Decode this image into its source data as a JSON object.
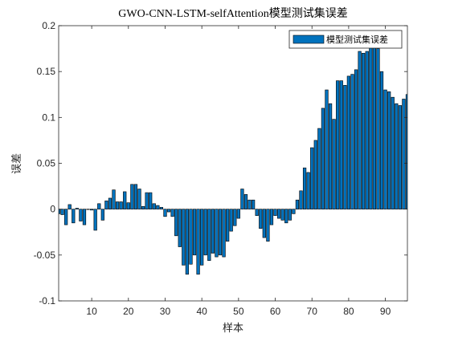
{
  "chart_data": {
    "type": "bar",
    "title": "GWO-CNN-LSTM-selfAttention模型测试集误差",
    "xlabel": "样本",
    "ylabel": "误差",
    "legend": [
      "模型测试集误差"
    ],
    "legend_position": "top-right",
    "xlim": [
      1,
      96
    ],
    "ylim": [
      -0.1,
      0.2
    ],
    "xticks": [
      10,
      20,
      30,
      40,
      50,
      60,
      70,
      80,
      90
    ],
    "yticks": [
      -0.1,
      -0.05,
      0,
      0.05,
      0.1,
      0.15,
      0.2
    ],
    "ytick_labels": [
      "-0.1",
      "-0.05",
      "0",
      "0.05",
      "0.1",
      "0.15",
      "0.2"
    ],
    "bar_color": "#0072BD",
    "x": [
      1,
      2,
      3,
      4,
      5,
      6,
      7,
      8,
      9,
      10,
      11,
      12,
      13,
      14,
      15,
      16,
      17,
      18,
      19,
      20,
      21,
      22,
      23,
      24,
      25,
      26,
      27,
      28,
      29,
      30,
      31,
      32,
      33,
      34,
      35,
      36,
      37,
      38,
      39,
      40,
      41,
      42,
      43,
      44,
      45,
      46,
      47,
      48,
      49,
      50,
      51,
      52,
      53,
      54,
      55,
      56,
      57,
      58,
      59,
      60,
      61,
      62,
      63,
      64,
      65,
      66,
      67,
      68,
      69,
      70,
      71,
      72,
      73,
      74,
      75,
      76,
      77,
      78,
      79,
      80,
      81,
      82,
      83,
      84,
      85,
      86,
      87,
      88,
      89,
      90,
      91,
      92,
      93,
      94,
      95,
      96
    ],
    "values": [
      -0.005,
      -0.006,
      -0.017,
      0.005,
      -0.015,
      0.001,
      -0.013,
      -0.017,
      0.0,
      -0.001,
      -0.023,
      0.006,
      -0.012,
      0.009,
      0.012,
      0.021,
      0.008,
      0.008,
      0.019,
      0.007,
      0.027,
      0.027,
      0.022,
      0.003,
      0.018,
      0.018,
      0.006,
      0.004,
      0.002,
      -0.008,
      -0.003,
      -0.008,
      -0.029,
      -0.041,
      -0.061,
      -0.071,
      -0.06,
      -0.05,
      -0.071,
      -0.061,
      -0.05,
      -0.056,
      -0.048,
      -0.052,
      -0.05,
      -0.052,
      -0.035,
      -0.024,
      -0.018,
      -0.01,
      0.022,
      0.016,
      0.01,
      0.01,
      -0.007,
      -0.021,
      -0.031,
      -0.035,
      -0.017,
      -0.007,
      -0.01,
      -0.012,
      -0.015,
      -0.012,
      -0.005,
      0.01,
      0.02,
      0.045,
      0.04,
      0.067,
      0.075,
      0.088,
      0.11,
      0.13,
      0.115,
      0.098,
      0.14,
      0.14,
      0.135,
      0.145,
      0.147,
      0.152,
      0.172,
      0.17,
      0.172,
      0.18,
      0.177,
      0.175,
      0.15,
      0.13,
      0.128,
      0.122,
      0.115,
      0.113,
      0.12,
      0.125
    ]
  }
}
